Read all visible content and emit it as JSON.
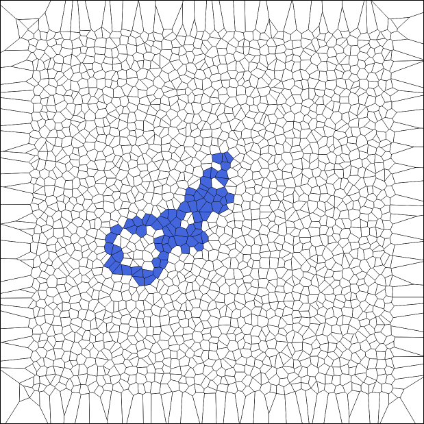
{
  "diagram": {
    "type": "voronoi-tessellation",
    "background_color": "#ffffff",
    "edge_color": "#000000",
    "region_fill_color": "#4466dd",
    "seed_fill_color": "#dd2222",
    "visible_text": []
  }
}
